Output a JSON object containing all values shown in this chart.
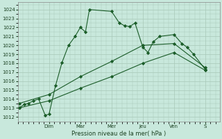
{
  "xlabel": "Pression niveau de la mer( hPa )",
  "background_color": "#c8e8dc",
  "grid_color": "#a8c8b8",
  "line_color": "#1a5c28",
  "ylim": [
    1011.5,
    1024.8
  ],
  "yticks": [
    1012,
    1013,
    1014,
    1015,
    1016,
    1017,
    1018,
    1019,
    1020,
    1021,
    1022,
    1023,
    1024
  ],
  "xtick_positions": [
    24,
    48,
    72,
    96,
    120,
    144
  ],
  "xtick_labels": [
    "Dim",
    "Mar",
    "Mer",
    "Jeu",
    "Ven",
    "S"
  ],
  "xlim": [
    0,
    155
  ],
  "line1_x": [
    1,
    5,
    8,
    12,
    16,
    21,
    24,
    29,
    34,
    39,
    44,
    48,
    52,
    55,
    72,
    78,
    82,
    86,
    90,
    96,
    100,
    104,
    109,
    120,
    126,
    130,
    135,
    144
  ],
  "line1_y": [
    1013.0,
    1013.4,
    1013.5,
    1013.8,
    1014.0,
    1012.2,
    1012.3,
    1015.5,
    1018.1,
    1020.0,
    1021.0,
    1022.0,
    1021.5,
    1024.0,
    1023.8,
    1022.5,
    1022.2,
    1022.1,
    1022.5,
    1019.8,
    1019.2,
    1020.4,
    1021.0,
    1021.2,
    1020.2,
    1019.8,
    1019.0,
    1017.3
  ],
  "line2_x": [
    1,
    24,
    48,
    72,
    96,
    120,
    144
  ],
  "line2_y": [
    1013.5,
    1014.5,
    1016.5,
    1018.2,
    1020.0,
    1020.2,
    1017.5
  ],
  "line3_x": [
    1,
    24,
    48,
    72,
    96,
    120,
    144
  ],
  "line3_y": [
    1013.0,
    1013.8,
    1015.2,
    1016.5,
    1018.0,
    1019.2,
    1017.2
  ]
}
